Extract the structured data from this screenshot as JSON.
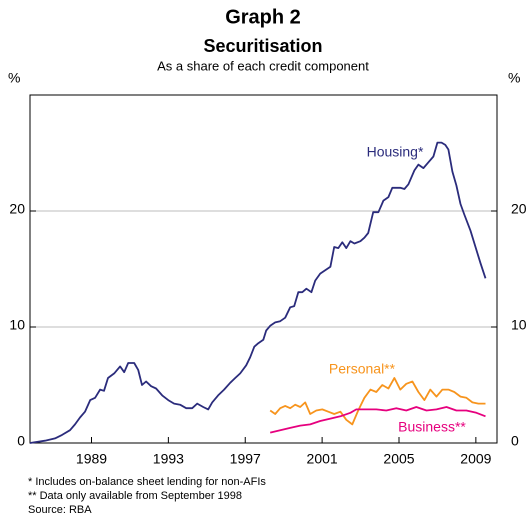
{
  "chart_data": {
    "type": "line",
    "title": "Graph 2",
    "subtitle": "Securitisation",
    "description": "As a share of each credit component",
    "y_unit": "%",
    "xlim": [
      1985.8,
      2010.1
    ],
    "xticks": [
      1989,
      1993,
      1997,
      2001,
      2005,
      2009
    ],
    "ylim": [
      0,
      30
    ],
    "yticks": [
      0,
      10,
      20
    ],
    "grid": true,
    "series": [
      {
        "name": "Housing*",
        "color": "#2b2c7c",
        "x": [
          1985.8,
          1986.58,
          1987.1,
          1987.47,
          1987.88,
          1988.14,
          1988.4,
          1988.66,
          1988.93,
          1989.19,
          1989.45,
          1989.65,
          1989.86,
          1990.18,
          1990.49,
          1990.7,
          1990.91,
          1991.22,
          1991.43,
          1991.63,
          1991.84,
          1992.1,
          1992.36,
          1992.68,
          1992.99,
          1993.3,
          1993.61,
          1993.93,
          1994.24,
          1994.5,
          1994.81,
          1995.07,
          1995.28,
          1995.59,
          1995.9,
          1996.22,
          1996.48,
          1996.74,
          1997.05,
          1997.26,
          1997.47,
          1997.68,
          1997.94,
          1998.09,
          1998.3,
          1998.56,
          1998.82,
          1999.08,
          1999.34,
          1999.55,
          1999.76,
          1999.97,
          2000.18,
          2000.44,
          2000.64,
          2000.9,
          2001.16,
          2001.43,
          2001.63,
          2001.84,
          2002.05,
          2002.26,
          2002.47,
          2002.68,
          2002.99,
          2003.2,
          2003.4,
          2003.66,
          2003.93,
          2004.19,
          2004.45,
          2004.65,
          2004.86,
          2005.07,
          2005.28,
          2005.49,
          2005.8,
          2006.01,
          2006.27,
          2006.53,
          2006.79,
          2007.0,
          2007.21,
          2007.41,
          2007.57,
          2007.78,
          2007.99,
          2008.2,
          2008.4,
          2008.72,
          2008.98,
          2009.24,
          2009.5
        ],
        "values": [
          0,
          0.2,
          0.4,
          0.7,
          1.1,
          1.6,
          2.2,
          2.7,
          3.7,
          3.9,
          4.6,
          4.5,
          5.6,
          6.0,
          6.6,
          6.1,
          6.9,
          6.9,
          6.3,
          5.0,
          5.3,
          4.9,
          4.7,
          4.1,
          3.7,
          3.4,
          3.3,
          3.0,
          3.0,
          3.4,
          3.1,
          2.9,
          3.5,
          4.1,
          4.6,
          5.2,
          5.6,
          6.0,
          6.7,
          7.4,
          8.3,
          8.6,
          8.9,
          9.7,
          10.1,
          10.4,
          10.5,
          10.8,
          11.7,
          11.8,
          13.0,
          13.0,
          13.3,
          13.0,
          14.0,
          14.6,
          14.9,
          15.2,
          16.9,
          16.8,
          17.3,
          16.8,
          17.4,
          17.2,
          17.4,
          17.7,
          18.1,
          19.9,
          19.9,
          20.9,
          21.2,
          22.0,
          22.0,
          22.0,
          21.9,
          22.3,
          23.5,
          24.0,
          23.7,
          24.2,
          24.7,
          25.9,
          25.9,
          25.7,
          25.3,
          23.4,
          22.2,
          20.6,
          19.7,
          18.3,
          16.9,
          15.5,
          14.2
        ]
      },
      {
        "name": "Personal**",
        "color": "#f7941d",
        "x": [
          1998.3,
          1998.56,
          1998.82,
          1999.08,
          1999.34,
          1999.6,
          1999.86,
          2000.12,
          2000.38,
          2000.7,
          2001.01,
          2001.32,
          2001.63,
          2001.95,
          2002.26,
          2002.57,
          2002.88,
          2003.2,
          2003.51,
          2003.82,
          2004.13,
          2004.45,
          2004.76,
          2005.07,
          2005.38,
          2005.7,
          2006.01,
          2006.32,
          2006.63,
          2006.95,
          2007.26,
          2007.57,
          2007.88,
          2008.2,
          2008.51,
          2008.82,
          2009.13,
          2009.5
        ],
        "values": [
          2.8,
          2.5,
          3.0,
          3.2,
          3.0,
          3.3,
          3.1,
          3.5,
          2.5,
          2.8,
          2.9,
          2.7,
          2.5,
          2.7,
          2.0,
          1.6,
          2.8,
          3.9,
          4.6,
          4.4,
          5.0,
          4.7,
          5.6,
          4.6,
          5.1,
          5.3,
          4.4,
          3.7,
          4.6,
          4.0,
          4.6,
          4.6,
          4.4,
          4.0,
          3.9,
          3.5,
          3.4,
          3.4
        ]
      },
      {
        "name": "Business**",
        "color": "#e6007e",
        "x": [
          1998.3,
          1998.82,
          1999.34,
          1999.86,
          2000.38,
          2000.9,
          2001.43,
          2001.95,
          2002.47,
          2002.78,
          2003.3,
          2003.82,
          2004.34,
          2004.86,
          2005.38,
          2005.9,
          2006.43,
          2006.95,
          2007.47,
          2007.99,
          2008.51,
          2009.03,
          2009.5
        ],
        "values": [
          0.9,
          1.1,
          1.3,
          1.5,
          1.6,
          1.9,
          2.1,
          2.3,
          2.6,
          2.9,
          2.9,
          2.9,
          2.8,
          3.0,
          2.8,
          3.1,
          2.8,
          2.9,
          3.1,
          2.8,
          2.8,
          2.6,
          2.3
        ]
      }
    ],
    "footnotes": [
      "*    Includes on-balance sheet lending for non-AFIs",
      "**  Data only available from September 1998",
      "Source: RBA"
    ]
  }
}
